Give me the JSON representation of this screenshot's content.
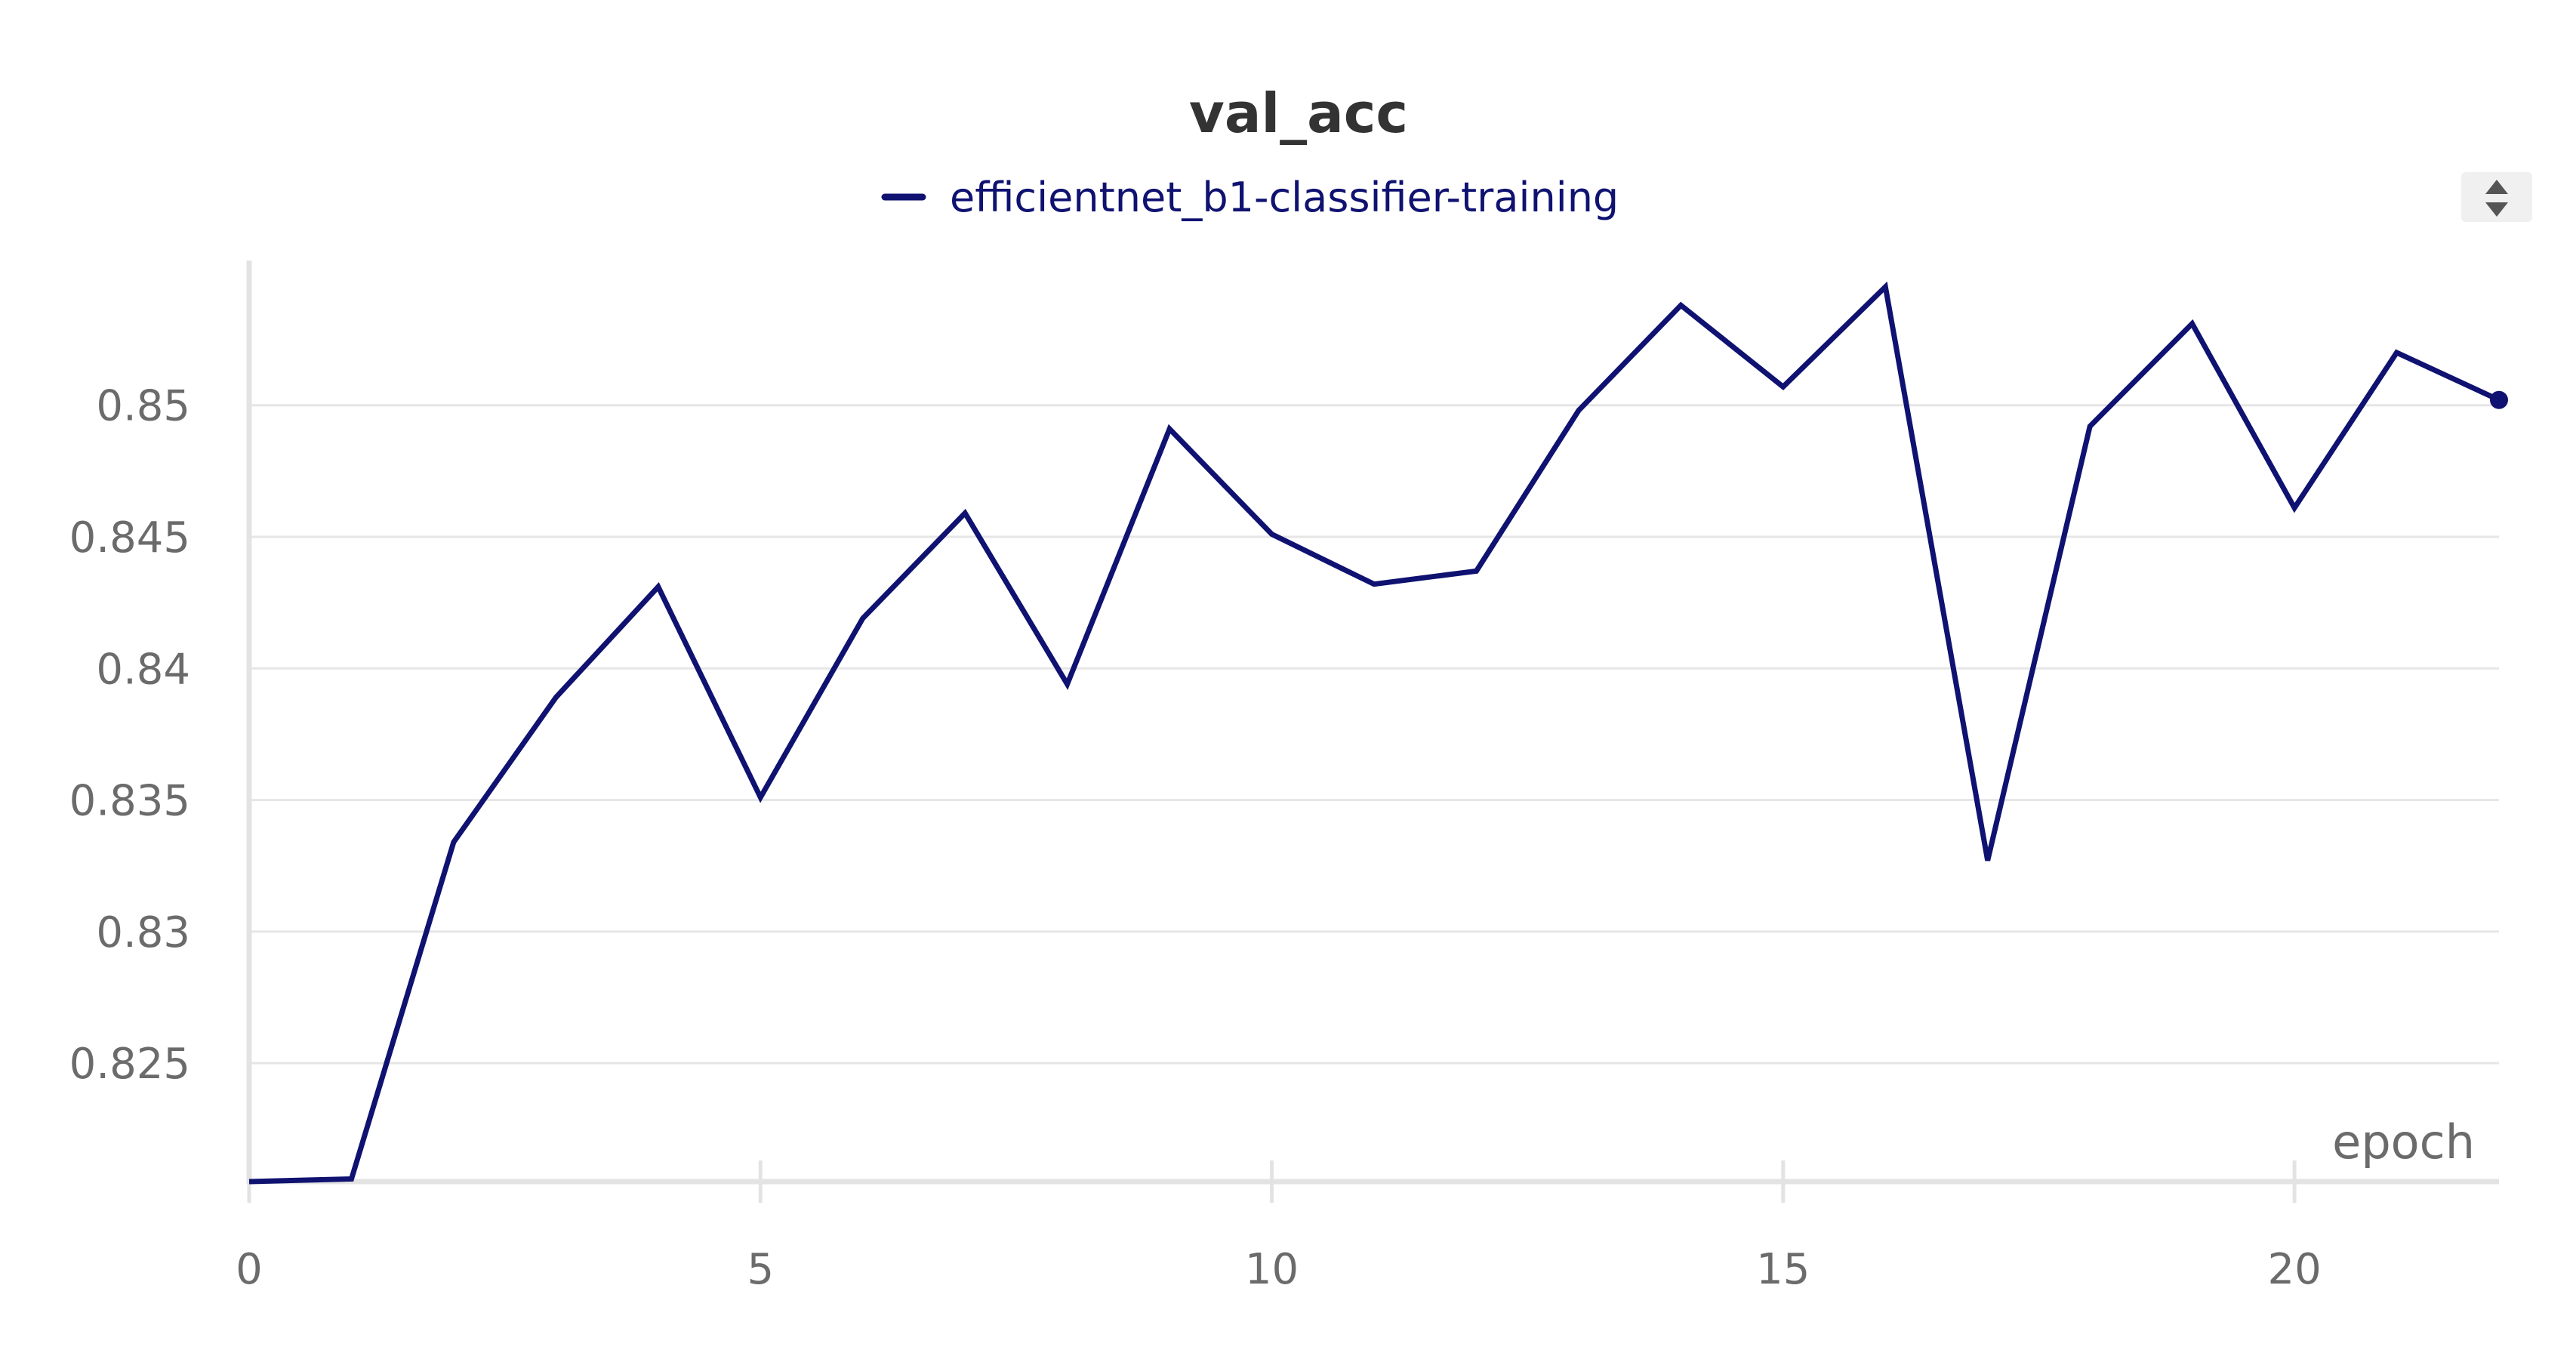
{
  "chart_data": {
    "type": "line",
    "title": "val_acc",
    "xlabel": "epoch",
    "ylabel": "",
    "xlim": [
      0,
      22
    ],
    "ylim": [
      0.8205,
      0.8555
    ],
    "x_ticks": [
      0,
      5,
      10,
      15,
      20
    ],
    "x_tick_labels": [
      "0",
      "5",
      "10",
      "15",
      "20"
    ],
    "y_ticks": [
      0.825,
      0.83,
      0.835,
      0.84,
      0.845,
      0.85
    ],
    "y_tick_labels": [
      "0.825",
      "0.83",
      "0.835",
      "0.84",
      "0.845",
      "0.85"
    ],
    "grid": true,
    "legend_position": "top-center",
    "series": [
      {
        "name": "efficientnet_b1-classifier-training",
        "color": "#0f1270",
        "x": [
          0,
          1,
          2,
          3,
          4,
          5,
          6,
          7,
          8,
          9,
          10,
          11,
          12,
          13,
          14,
          15,
          16,
          17,
          18,
          19,
          20,
          21,
          22
        ],
        "values": [
          0.8205,
          0.8206,
          0.8334,
          0.8389,
          0.8431,
          0.8351,
          0.8419,
          0.8459,
          0.8394,
          0.8491,
          0.8451,
          0.8432,
          0.8437,
          0.8498,
          0.8538,
          0.8507,
          0.8545,
          0.8327,
          0.8492,
          0.8531,
          0.8461,
          0.852,
          0.8502
        ]
      }
    ]
  },
  "colors": {
    "title": "#333333",
    "tick": "#6b6b6b",
    "grid": "#e6e6e6",
    "axis": "#e3e3e3",
    "legend_text": "#0f1270",
    "control_bg": "#f0f0f0",
    "control_icon": "#555555"
  }
}
